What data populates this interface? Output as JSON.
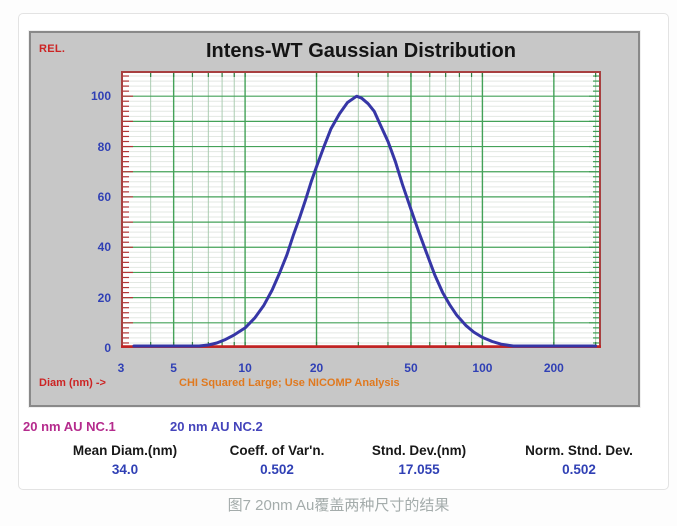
{
  "panel": {
    "rel_label": "REL.",
    "x_axis_label": "Diam (nm) ->",
    "status_message": "CHI Squared Large; Use NICOMP Analysis"
  },
  "legend": [
    {
      "label": "20 nm AU NC.1",
      "color": "#b52b8d"
    },
    {
      "label": "20 nm AU NC.2",
      "color": "#4444bb"
    }
  ],
  "stats": [
    {
      "label": "Mean Diam.(nm)",
      "value": "34.0"
    },
    {
      "label": "Coeff. of Var'n.",
      "value": "0.502"
    },
    {
      "label": "Stnd. Dev.(nm)",
      "value": "17.055"
    },
    {
      "label": "Norm. Stnd. Dev.",
      "value": "0.502"
    }
  ],
  "caption": "图7 20nm Au覆盖两种尺寸的结果",
  "colors": {
    "panel_bg": "#c7c7c7",
    "plot_border": "#a84040",
    "axis_red": "#c32222",
    "tick_red": "#b23737",
    "tick_green": "#3d9b51",
    "grid_major": "#44a258",
    "grid_minor_h": "#e3e8e3",
    "grid_minor_v": "#abcdb2",
    "top_bottom_tick": "#2e7f41",
    "curve": "#3636a6",
    "label_blue": "#3040b5"
  },
  "chart_data": {
    "type": "line",
    "title": "Intens-WT Gaussian Distribution",
    "xlabel": "Diam (nm) ->",
    "ylabel": "REL.",
    "x_scale": "log",
    "xlim": [
      3,
      316
    ],
    "ylim": [
      0,
      110
    ],
    "x_ticks": [
      3,
      5,
      10,
      20,
      50,
      100,
      200
    ],
    "y_ticks": [
      0,
      20,
      40,
      60,
      80,
      100
    ],
    "x_major_gridlines": [
      5,
      10,
      20,
      50,
      100,
      200
    ],
    "x_minor_gridlines": [
      4,
      6,
      7,
      8,
      9,
      30,
      40,
      60,
      70,
      80,
      90,
      300
    ],
    "y_major_step": 10,
    "y_minor_step": 2,
    "grid": true,
    "legend_position": "below-left",
    "annotation": "CHI Squared Large; Use NICOMP Analysis",
    "series": [
      {
        "name": "Intens-WT Gaussian (20 nm AU)",
        "mean_diam_nm": 34.0,
        "stnd_dev_nm": 17.055,
        "points": [
          [
            3.4,
            0
          ],
          [
            3.8,
            0.3
          ],
          [
            4.2,
            0.6
          ],
          [
            4.7,
            0.8
          ],
          [
            5.2,
            0.6
          ],
          [
            5.8,
            0.5
          ],
          [
            6.4,
            0.8
          ],
          [
            7,
            1.2
          ],
          [
            7.6,
            2
          ],
          [
            8.2,
            3.2
          ],
          [
            9,
            5.2
          ],
          [
            10,
            8
          ],
          [
            11,
            12
          ],
          [
            12,
            17
          ],
          [
            13,
            23
          ],
          [
            14,
            30
          ],
          [
            15,
            37
          ],
          [
            16,
            45
          ],
          [
            17,
            52
          ],
          [
            18,
            59
          ],
          [
            19,
            66
          ],
          [
            20,
            72
          ],
          [
            21.5,
            80
          ],
          [
            23,
            87
          ],
          [
            25,
            93
          ],
          [
            27,
            97.5
          ],
          [
            29.5,
            100
          ],
          [
            31,
            99.2
          ],
          [
            33,
            97
          ],
          [
            35,
            94
          ],
          [
            37,
            89
          ],
          [
            40,
            82
          ],
          [
            43,
            74
          ],
          [
            46,
            65
          ],
          [
            50,
            55
          ],
          [
            54,
            46
          ],
          [
            58,
            38
          ],
          [
            63,
            29
          ],
          [
            68,
            22
          ],
          [
            73,
            17
          ],
          [
            78,
            13
          ],
          [
            85,
            9
          ],
          [
            92,
            6.3
          ],
          [
            100,
            4.2
          ],
          [
            110,
            2.6
          ],
          [
            120,
            1.5
          ],
          [
            135,
            0.7
          ],
          [
            150,
            0.3
          ],
          [
            170,
            0.12
          ],
          [
            200,
            0.05
          ],
          [
            240,
            0
          ],
          [
            300,
            0
          ]
        ]
      }
    ]
  }
}
